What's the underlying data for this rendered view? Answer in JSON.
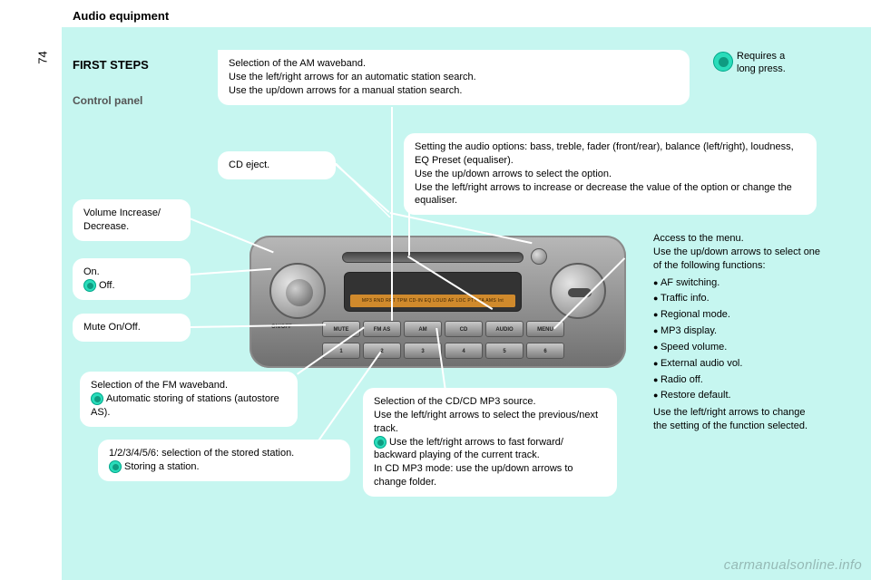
{
  "page_number": "74",
  "header": "Audio equipment",
  "first_steps": "FIRST STEPS",
  "control_panel": "Control panel",
  "requires": {
    "line1": "Requires a",
    "line2": "long press."
  },
  "callouts": {
    "am": {
      "l1": "Selection of the AM waveband.",
      "l2": "Use the left/right arrows for an automatic station search.",
      "l3": "Use the up/down arrows for a manual station search."
    },
    "cd_eject": "CD eject.",
    "audio_options": {
      "l1": "Setting the audio options: bass, treble, fader (front/rear), balance (left/right), loudness, EQ Preset (equaliser).",
      "l2": "Use the up/down arrows to select the option.",
      "l3": "Use the left/right arrows to increase or decrease the value of the option or change the equaliser."
    },
    "volume": "Volume Increase/\nDecrease.",
    "on": "On.",
    "off": "Off.",
    "mute": "Mute On/Off.",
    "fm": {
      "l1": "Selection of the FM waveband.",
      "l2": "Automatic storing of stations (autostore AS)."
    },
    "presets": {
      "l1": "1/2/3/4/5/6: selection of the stored station.",
      "l2": "Storing a station."
    },
    "cd": {
      "l1": "Selection of the CD/CD MP3 source.",
      "l2": "Use the left/right arrows to select the previous/next track.",
      "l3": "Use the left/right arrows to fast forward/ backward playing of the current track.",
      "l4": "In CD MP3 mode: use the up/down arrows to change folder."
    },
    "menu": {
      "intro1": "Access to the menu.",
      "intro2": "Use the up/down arrows to select one of the following functions:",
      "items": [
        "AF switching.",
        "Traffic info.",
        "Regional mode.",
        "MP3 display.",
        "Speed volume.",
        "External audio vol.",
        "Radio off.",
        "Restore default."
      ],
      "outro": "Use the left/right arrows to change the setting of the function selected."
    }
  },
  "radio": {
    "display_text": "MP3 RND RPT TPM CD-IN EQ LOUD AF LOC PTY TA AMS Int",
    "row1": [
      "MUTE",
      "FM AS",
      "AM",
      "CD",
      "AUDIO",
      "MENU"
    ],
    "row2": [
      "1",
      "2",
      "3",
      "4",
      "5",
      "6"
    ],
    "onoff": "ON/OFF"
  },
  "watermark": "carmanualsonline.info",
  "colors": {
    "teal_bg": "#c6f6f0",
    "icon_fill": "#2adcba",
    "icon_border": "#00a68a"
  }
}
